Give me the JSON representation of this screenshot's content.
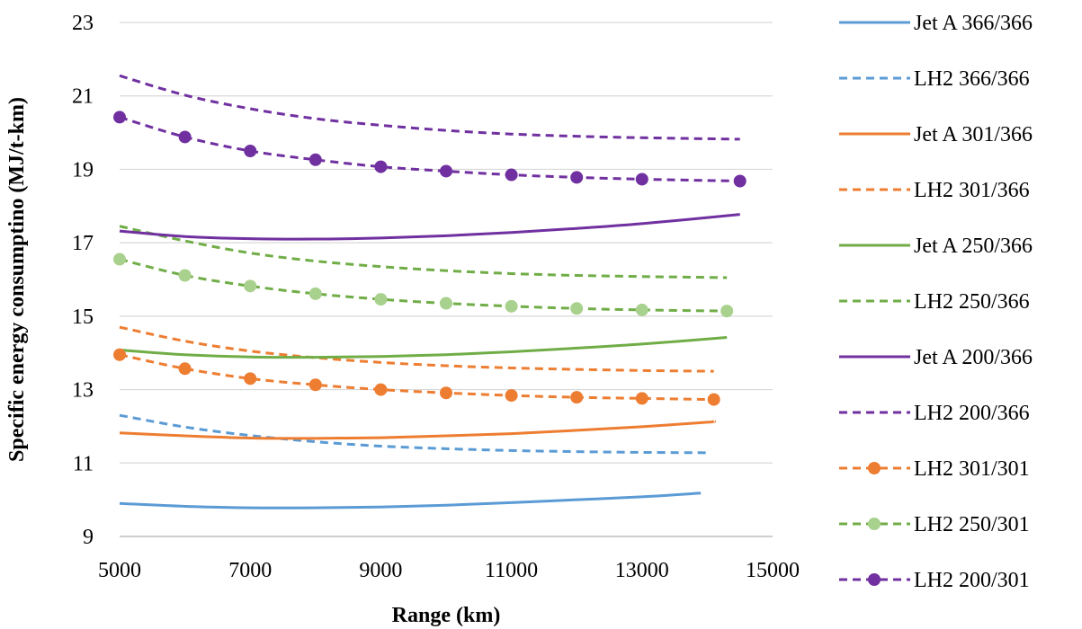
{
  "chart_data": {
    "type": "line",
    "xlabel": "Range (km)",
    "ylabel": "Specific energy consumptino (MJ/t-km)",
    "xlim": [
      5000,
      15000
    ],
    "ylim": [
      9,
      23
    ],
    "xticks": [
      "5000",
      "7000",
      "9000",
      "11000",
      "13000",
      "15000"
    ],
    "yticks": [
      "9",
      "11",
      "13",
      "15",
      "17",
      "19",
      "21",
      "23"
    ],
    "grid": "horizontal",
    "legend": "right",
    "series": [
      {
        "name": "Jet A 366/366",
        "color": "#5b9bd5",
        "dash": "solid",
        "marker": "none",
        "x": [
          5000,
          6000,
          7000,
          8000,
          9000,
          10000,
          11000,
          12000,
          13000,
          13900
        ],
        "y": [
          9.9,
          9.82,
          9.78,
          9.78,
          9.8,
          9.85,
          9.92,
          10.0,
          10.08,
          10.18
        ]
      },
      {
        "name": "LH2 366/366",
        "color": "#5b9bd5",
        "dash": "dashed",
        "marker": "none",
        "x": [
          5000,
          6000,
          7000,
          8000,
          9000,
          10000,
          11000,
          12000,
          13000,
          14000
        ],
        "y": [
          12.3,
          11.98,
          11.75,
          11.58,
          11.46,
          11.39,
          11.34,
          11.31,
          11.29,
          11.28
        ]
      },
      {
        "name": "Jet A 301/366",
        "color": "#ed7d31",
        "dash": "solid",
        "marker": "none",
        "x": [
          5000,
          6000,
          7000,
          8000,
          9000,
          10000,
          11000,
          12000,
          13000,
          14000,
          14100
        ],
        "y": [
          11.82,
          11.74,
          11.68,
          11.67,
          11.69,
          11.74,
          11.8,
          11.89,
          11.99,
          12.11,
          12.14
        ]
      },
      {
        "name": "LH2 301/366",
        "color": "#ed7d31",
        "dash": "dashed",
        "marker": "none",
        "x": [
          5000,
          6000,
          7000,
          8000,
          9000,
          10000,
          11000,
          12000,
          13000,
          14100
        ],
        "y": [
          14.7,
          14.32,
          14.05,
          13.87,
          13.74,
          13.65,
          13.59,
          13.55,
          13.52,
          13.5
        ]
      },
      {
        "name": "Jet A 250/366",
        "color": "#70ad47",
        "dash": "solid",
        "marker": "none",
        "x": [
          5000,
          6000,
          7000,
          8000,
          9000,
          10000,
          11000,
          12000,
          13000,
          14300
        ],
        "y": [
          14.08,
          13.95,
          13.89,
          13.88,
          13.9,
          13.95,
          14.03,
          14.13,
          14.24,
          14.42
        ]
      },
      {
        "name": "LH2 250/366",
        "color": "#70ad47",
        "dash": "dashed",
        "marker": "none",
        "x": [
          5000,
          6000,
          7000,
          8000,
          9000,
          10000,
          11000,
          12000,
          13000,
          14300
        ],
        "y": [
          17.45,
          17.05,
          16.72,
          16.5,
          16.35,
          16.24,
          16.16,
          16.11,
          16.08,
          16.05
        ]
      },
      {
        "name": "Jet A 200/366",
        "color": "#7030a0",
        "dash": "solid",
        "marker": "none",
        "x": [
          5000,
          6000,
          7000,
          8000,
          9000,
          10000,
          11000,
          12000,
          13000,
          14500
        ],
        "y": [
          17.32,
          17.17,
          17.11,
          17.1,
          17.13,
          17.19,
          17.28,
          17.39,
          17.52,
          17.77
        ]
      },
      {
        "name": "LH2 200/366",
        "color": "#7030a0",
        "dash": "dashed",
        "marker": "none",
        "x": [
          5000,
          6000,
          7000,
          8000,
          9000,
          10000,
          11000,
          12000,
          13000,
          14500
        ],
        "y": [
          21.55,
          21.02,
          20.65,
          20.38,
          20.2,
          20.06,
          19.96,
          19.9,
          19.86,
          19.82
        ]
      },
      {
        "name": "LH2 301/301",
        "color": "#ed7d31",
        "dash": "dashed",
        "marker": "circle",
        "x": [
          5000,
          6000,
          7000,
          8000,
          9000,
          10000,
          11000,
          12000,
          13000,
          14100
        ],
        "y": [
          13.95,
          13.57,
          13.3,
          13.13,
          13.0,
          12.91,
          12.84,
          12.79,
          12.76,
          12.73
        ]
      },
      {
        "name": "LH2 250/301",
        "color": "#a9d18e",
        "line_color": "#70ad47",
        "dash": "dashed",
        "marker": "circle",
        "x": [
          5000,
          6000,
          7000,
          8000,
          9000,
          10000,
          11000,
          12000,
          13000,
          14300
        ],
        "y": [
          16.55,
          16.11,
          15.82,
          15.61,
          15.46,
          15.35,
          15.27,
          15.21,
          15.17,
          15.14
        ]
      },
      {
        "name": "LH2 200/301",
        "color": "#7030a0",
        "dash": "dashed",
        "marker": "circle",
        "x": [
          5000,
          6000,
          7000,
          8000,
          9000,
          10000,
          11000,
          12000,
          13000,
          14500
        ],
        "y": [
          20.42,
          19.88,
          19.5,
          19.26,
          19.07,
          18.95,
          18.85,
          18.78,
          18.73,
          18.68
        ]
      }
    ]
  }
}
